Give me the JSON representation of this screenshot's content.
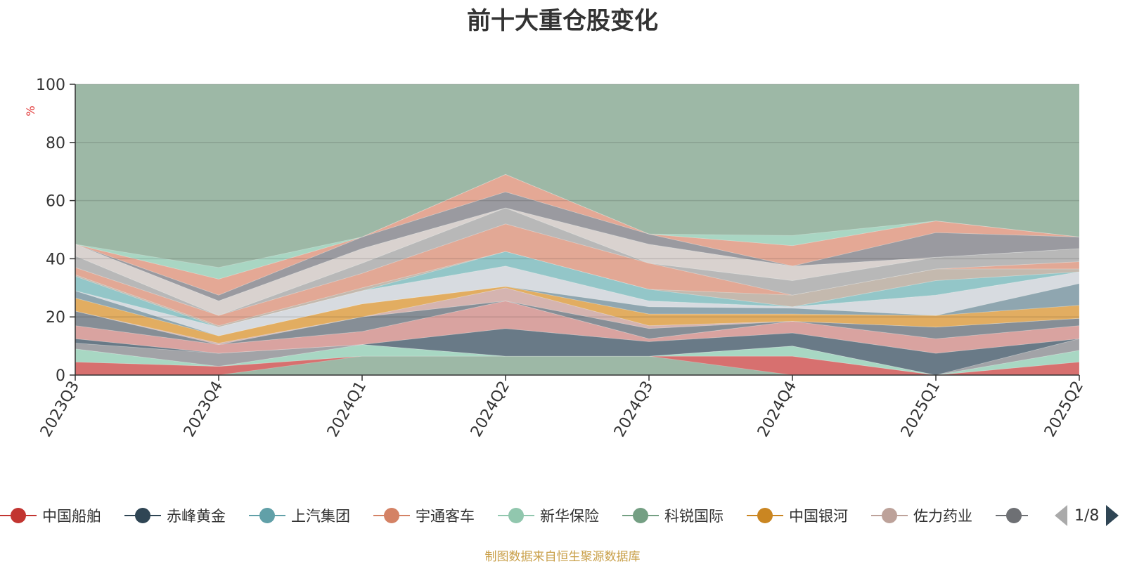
{
  "chart_data": {
    "type": "area",
    "title": "前十大重仓股变化",
    "ylabel": "%",
    "ylim": [
      0,
      100
    ],
    "yticks": [
      "0",
      "20",
      "40",
      "60",
      "80",
      "100"
    ],
    "categories": [
      "2023Q3",
      "2023Q4",
      "2024Q1",
      "2024Q2",
      "2024Q3",
      "2024Q4",
      "2025Q1",
      "2025Q2"
    ],
    "background_color": "#9db8a6",
    "stack_boundaries": [
      [
        0,
        0,
        6.5,
        6.5,
        6.5,
        0,
        0,
        0
      ],
      [
        4.5,
        3,
        6.5,
        6.5,
        6.5,
        6.5,
        0,
        4.5
      ],
      [
        9,
        3,
        10.5,
        6.5,
        6.5,
        10,
        0,
        8.5
      ],
      [
        11,
        7.5,
        10.5,
        6.5,
        6.5,
        10,
        0,
        12.5
      ],
      [
        12.5,
        7.5,
        10.5,
        16,
        11.5,
        14.5,
        7.5,
        12.5
      ],
      [
        17,
        10.5,
        15,
        25.5,
        12.5,
        18.5,
        12.5,
        17
      ],
      [
        22,
        10.5,
        20,
        25.5,
        16,
        18.5,
        16.5,
        19.5
      ],
      [
        22,
        11,
        20,
        30,
        17,
        18.5,
        16.5,
        19.5
      ],
      [
        26.5,
        13.5,
        24.5,
        30.5,
        21,
        21,
        20.5,
        24
      ],
      [
        29,
        13.5,
        24.5,
        30.5,
        23.5,
        23,
        20.5,
        31.5
      ],
      [
        29,
        16.5,
        29,
        37.5,
        25.5,
        23.5,
        27.5,
        35.5
      ],
      [
        34,
        16.5,
        29,
        42.5,
        29.5,
        23.5,
        32.5,
        35.5
      ],
      [
        34.5,
        17,
        30,
        42.5,
        29.5,
        27.5,
        36.5,
        36.5
      ],
      [
        37,
        20.5,
        35,
        52,
        38.5,
        27.5,
        36.5,
        39
      ],
      [
        41,
        20.5,
        38.5,
        57.5,
        38.5,
        32.5,
        40.5,
        43.5
      ],
      [
        45,
        25.5,
        43.5,
        57.5,
        45,
        37.5,
        40.5,
        43.5
      ],
      [
        45,
        27.5,
        47.5,
        63,
        48.5,
        37.5,
        49,
        47.5
      ],
      [
        45,
        33,
        47.5,
        69,
        48.5,
        44.5,
        53,
        47.5
      ],
      [
        45,
        37,
        47.5,
        69,
        48.5,
        48,
        53,
        47.5
      ]
    ],
    "layer_colors": [
      "#d7706f",
      "#a8d7c3",
      "#a2a3a7",
      "#697a87",
      "#d9a3a0",
      "#868e96",
      "#d5b4b0",
      "#e2ad61",
      "#8fa6b0",
      "#d7dbe0",
      "#93c6c8",
      "#c4b9ae",
      "#e2a895",
      "#b8b8b8",
      "#d9d2cf",
      "#9a9aa0",
      "#e4a895",
      "#a9d6c3"
    ],
    "legend": [
      {
        "name": "中国船舶",
        "color": "#c23531"
      },
      {
        "name": "赤峰黄金",
        "color": "#2f4554"
      },
      {
        "name": "上汽集团",
        "color": "#61a0a8"
      },
      {
        "name": "宇通客车",
        "color": "#d48265"
      },
      {
        "name": "新华保险",
        "color": "#91c7ae"
      },
      {
        "name": "科锐国际",
        "color": "#749f83"
      },
      {
        "name": "中国银河",
        "color": "#ca8622"
      },
      {
        "name": "佐力药业",
        "color": "#bda29a"
      },
      {
        "name": "",
        "color": "#6e7074"
      }
    ],
    "legend_page": "1/8"
  },
  "source_note": "制图数据来自恒生聚源数据库"
}
